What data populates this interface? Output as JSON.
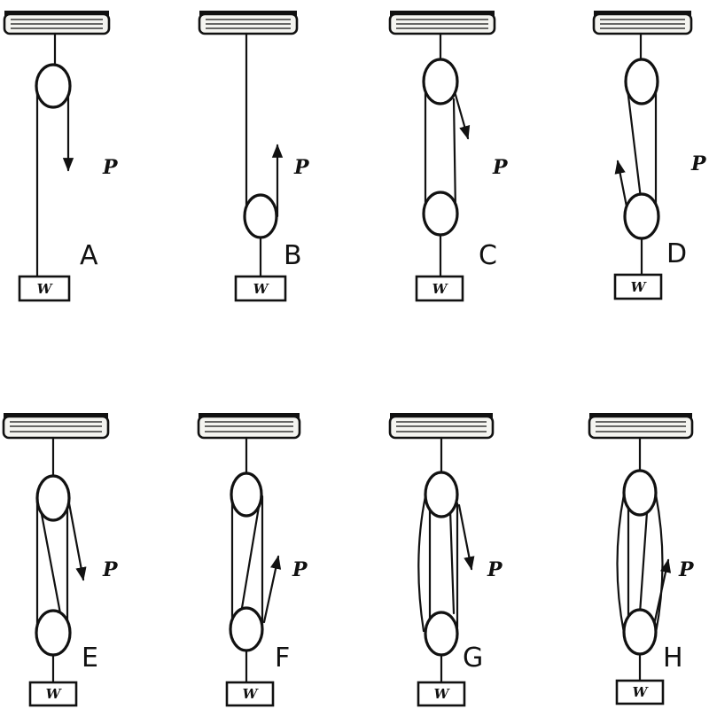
{
  "force_label": "P",
  "weight_label": "W",
  "panels": [
    {
      "letter": "A"
    },
    {
      "letter": "B"
    },
    {
      "letter": "C"
    },
    {
      "letter": "D"
    },
    {
      "letter": "E"
    },
    {
      "letter": "F"
    },
    {
      "letter": "G"
    },
    {
      "letter": "H"
    }
  ]
}
